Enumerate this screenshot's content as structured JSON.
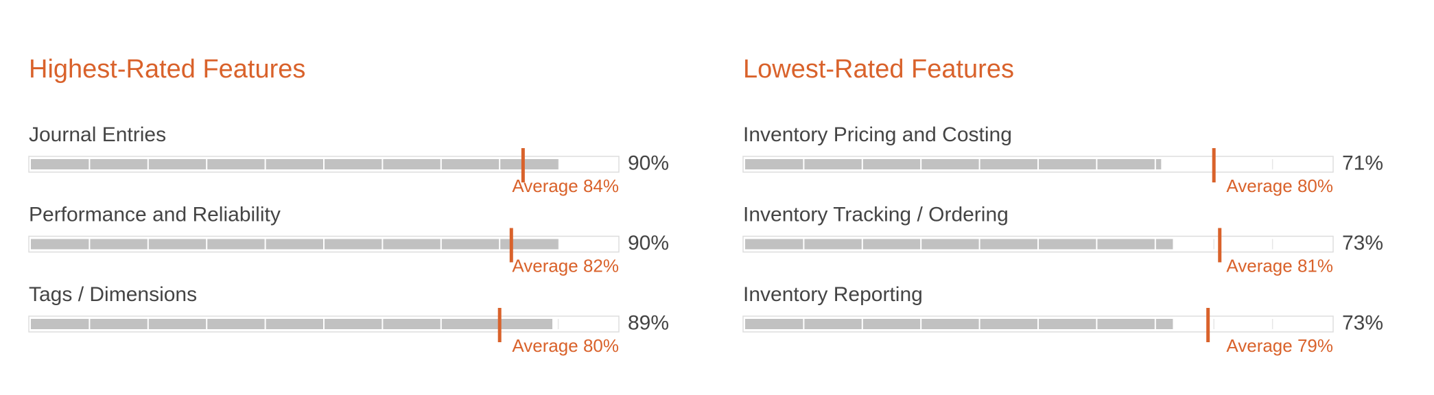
{
  "panels": [
    {
      "title": "Highest-Rated Features",
      "items": [
        {
          "name": "Journal Entries",
          "value": 90,
          "value_label": "90%",
          "average": 84,
          "average_label": "Average 84%"
        },
        {
          "name": "Performance and Reliability",
          "value": 90,
          "value_label": "90%",
          "average": 82,
          "average_label": "Average 82%"
        },
        {
          "name": "Tags / Dimensions",
          "value": 89,
          "value_label": "89%",
          "average": 80,
          "average_label": "Average 80%"
        }
      ]
    },
    {
      "title": "Lowest-Rated Features",
      "items": [
        {
          "name": "Inventory Pricing and Costing",
          "value": 71,
          "value_label": "71%",
          "average": 80,
          "average_label": "Average 80%"
        },
        {
          "name": "Inventory Tracking / Ordering",
          "value": 73,
          "value_label": "73%",
          "average": 81,
          "average_label": "Average 81%"
        },
        {
          "name": "Inventory Reporting",
          "value": 73,
          "value_label": "73%",
          "average": 79,
          "average_label": "Average 79%"
        }
      ]
    }
  ]
}
